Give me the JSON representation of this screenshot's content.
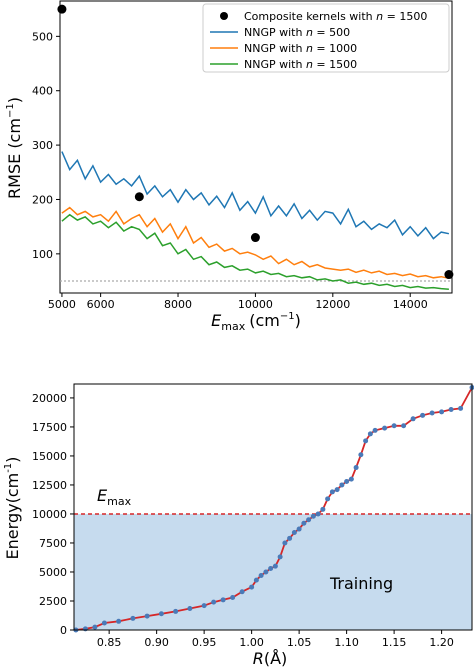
{
  "chart_data": [
    {
      "type": "line",
      "xlabel": "E",
      "xlabel_sub": "max",
      "xlabel_unit": "(cm",
      "xlabel_unit_sup": "−1",
      "xlabel_close": ")",
      "ylabel": "RMSE (cm",
      "ylabel_sup": "−1",
      "ylabel_close": ")",
      "xlim": [
        4950,
        15080
      ],
      "ylim": [
        28,
        565
      ],
      "xticks": [
        5000,
        6000,
        8000,
        10000,
        12000,
        14000
      ],
      "yticks": [
        100,
        200,
        300,
        400,
        500
      ],
      "xtick_labels": [
        "5000",
        "6000",
        "8000",
        "10000",
        "12000",
        "14000"
      ],
      "ytick_labels": [
        "100",
        "200",
        "300",
        "400",
        "500"
      ],
      "reference_line": {
        "y": 50,
        "style": "dotted",
        "color": "#aaaaaa"
      },
      "legend": {
        "placement": "top-right",
        "entries": [
          {
            "label_prefix": "Composite kernels with ",
            "n": "n",
            "label_suffix": " = 1500",
            "marker": "dot",
            "color": "#000000"
          },
          {
            "label_prefix": "NNGP with ",
            "n": "n",
            "label_suffix": " = 500",
            "marker": "line",
            "color": "#1f77b4"
          },
          {
            "label_prefix": "NNGP with ",
            "n": "n",
            "label_suffix": " = 1000",
            "marker": "line",
            "color": "#ff7f0e"
          },
          {
            "label_prefix": "NNGP with ",
            "n": "n",
            "label_suffix": " = 1500",
            "marker": "line",
            "color": "#2ca02c"
          }
        ]
      },
      "scatter": {
        "color": "#000000",
        "x": [
          5000,
          7000,
          10000,
          15000
        ],
        "y": [
          550,
          205,
          130,
          62
        ]
      },
      "series": [
        {
          "color": "#1f77b4",
          "x": [
            5000,
            5200,
            5400,
            5600,
            5800,
            6000,
            6200,
            6400,
            6600,
            6800,
            7000,
            7200,
            7400,
            7600,
            7800,
            8000,
            8200,
            8400,
            8600,
            8800,
            9000,
            9200,
            9400,
            9600,
            9800,
            10000,
            10200,
            10400,
            10600,
            10800,
            11000,
            11200,
            11400,
            11600,
            11800,
            12000,
            12200,
            12400,
            12600,
            12800,
            13000,
            13200,
            13400,
            13600,
            13800,
            14000,
            14200,
            14400,
            14600,
            14800,
            15000
          ],
          "y": [
            288,
            255,
            272,
            238,
            262,
            232,
            246,
            228,
            238,
            225,
            243,
            210,
            225,
            205,
            218,
            195,
            218,
            200,
            212,
            190,
            206,
            185,
            212,
            180,
            196,
            175,
            205,
            170,
            188,
            170,
            192,
            165,
            180,
            162,
            178,
            175,
            155,
            182,
            150,
            160,
            145,
            155,
            148,
            162,
            135,
            150,
            133,
            148,
            128,
            140,
            137
          ]
        },
        {
          "color": "#ff7f0e",
          "x": [
            5000,
            5200,
            5400,
            5600,
            5800,
            6000,
            6200,
            6400,
            6600,
            6800,
            7000,
            7200,
            7400,
            7600,
            7800,
            8000,
            8200,
            8400,
            8600,
            8800,
            9000,
            9200,
            9400,
            9600,
            9800,
            10000,
            10200,
            10400,
            10600,
            10800,
            11000,
            11200,
            11400,
            11600,
            11800,
            12000,
            12200,
            12400,
            12600,
            12800,
            13000,
            13200,
            13400,
            13600,
            13800,
            14000,
            14200,
            14400,
            14600,
            14800,
            15000
          ],
          "y": [
            175,
            185,
            172,
            178,
            168,
            172,
            160,
            178,
            155,
            165,
            172,
            150,
            165,
            140,
            155,
            128,
            150,
            120,
            130,
            112,
            118,
            105,
            110,
            100,
            103,
            98,
            90,
            96,
            82,
            90,
            80,
            86,
            76,
            80,
            74,
            72,
            70,
            72,
            66,
            70,
            65,
            68,
            62,
            64,
            60,
            63,
            58,
            60,
            56,
            58,
            55
          ]
        },
        {
          "color": "#2ca02c",
          "x": [
            5000,
            5200,
            5400,
            5600,
            5800,
            6000,
            6200,
            6400,
            6600,
            6800,
            7000,
            7200,
            7400,
            7600,
            7800,
            8000,
            8200,
            8400,
            8600,
            8800,
            9000,
            9200,
            9400,
            9600,
            9800,
            10000,
            10200,
            10400,
            10600,
            10800,
            11000,
            11200,
            11400,
            11600,
            11800,
            12000,
            12200,
            12400,
            12600,
            12800,
            13000,
            13200,
            13400,
            13600,
            13800,
            14000,
            14200,
            14400,
            14600,
            14800,
            15000
          ],
          "y": [
            160,
            172,
            162,
            168,
            155,
            160,
            148,
            158,
            142,
            150,
            145,
            128,
            138,
            115,
            120,
            100,
            108,
            90,
            95,
            80,
            85,
            75,
            78,
            70,
            72,
            65,
            68,
            62,
            64,
            58,
            60,
            56,
            58,
            52,
            54,
            50,
            52,
            46,
            48,
            44,
            46,
            42,
            44,
            40,
            42,
            38,
            40,
            37,
            38,
            36,
            35
          ]
        }
      ]
    },
    {
      "type": "line",
      "xlabel": "R",
      "xlabel_unit": "(Å)",
      "ylabel": "Energy(cm",
      "ylabel_sup": "-1",
      "ylabel_close": ")",
      "xlim": [
        0.813,
        1.232
      ],
      "ylim": [
        0,
        21200
      ],
      "xticks": [
        0.85,
        0.9,
        0.95,
        1.0,
        1.05,
        1.1,
        1.15,
        1.2
      ],
      "yticks": [
        0,
        2500,
        5000,
        7500,
        10000,
        12500,
        15000,
        17500,
        20000
      ],
      "xtick_labels": [
        "0.85",
        "0.90",
        "0.95",
        "1.00",
        "1.05",
        "1.10",
        "1.15",
        "1.20"
      ],
      "ytick_labels": [
        "0",
        "2500",
        "5000",
        "7500",
        "10000",
        "12500",
        "15000",
        "17500",
        "20000"
      ],
      "threshold": {
        "y": 10000,
        "style": "dashed",
        "color": "#d62728",
        "label": "E",
        "label_sub": "max"
      },
      "region": {
        "y_from": 0,
        "y_to": 10000,
        "color": "#c6dbee",
        "label": "Training"
      },
      "series": [
        {
          "line_color": "#d62728",
          "marker_color": "#4a7ab8",
          "x": [
            0.815,
            0.825,
            0.835,
            0.845,
            0.86,
            0.875,
            0.89,
            0.905,
            0.92,
            0.935,
            0.95,
            0.96,
            0.97,
            0.98,
            0.99,
            1.0,
            1.005,
            1.01,
            1.015,
            1.02,
            1.025,
            1.03,
            1.035,
            1.04,
            1.045,
            1.05,
            1.055,
            1.06,
            1.065,
            1.07,
            1.075,
            1.08,
            1.085,
            1.09,
            1.095,
            1.1,
            1.105,
            1.11,
            1.115,
            1.12,
            1.125,
            1.13,
            1.14,
            1.15,
            1.16,
            1.17,
            1.18,
            1.19,
            1.2,
            1.21,
            1.22,
            1.232
          ],
          "y": [
            0,
            100,
            250,
            600,
            750,
            1000,
            1200,
            1400,
            1600,
            1850,
            2100,
            2400,
            2600,
            2800,
            3300,
            3700,
            4300,
            4700,
            5000,
            5300,
            5500,
            6300,
            7500,
            7900,
            8400,
            8700,
            9200,
            9500,
            9800,
            10000,
            10400,
            11300,
            11900,
            12100,
            12500,
            12800,
            13000,
            14000,
            15100,
            16300,
            16900,
            17200,
            17400,
            17600,
            17600,
            18200,
            18500,
            18700,
            18800,
            19000,
            19100,
            20900
          ]
        }
      ]
    }
  ]
}
